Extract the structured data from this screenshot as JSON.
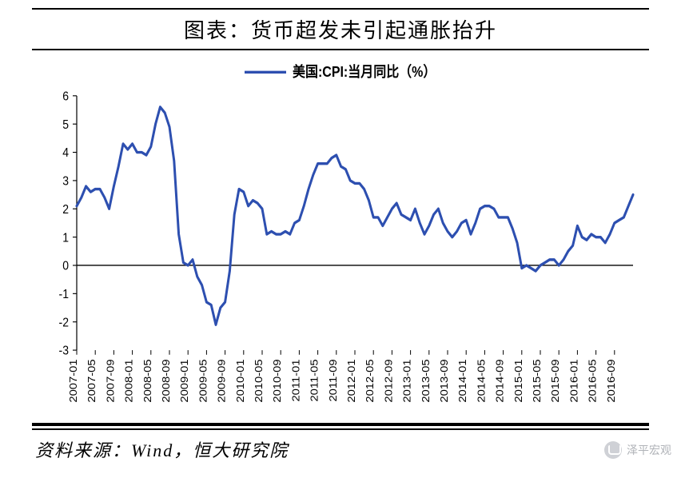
{
  "title": "图表：货币超发未引起通胀抬升",
  "source": "资料来源：Wind，恒大研究院",
  "watermark": "泽平宏观",
  "chart": {
    "type": "line",
    "legend": {
      "label": "美国:CPI:当月同比（%）",
      "color": "#2d4fb0",
      "line_width": 3
    },
    "background_color": "#ffffff",
    "axis_color": "#000000",
    "tick_color": "#000000",
    "y": {
      "min": -3,
      "max": 6,
      "step": 1,
      "ticks": [
        -3,
        -2,
        -1,
        0,
        1,
        2,
        3,
        4,
        5,
        6
      ]
    },
    "x": {
      "labels": [
        "2007-01",
        "2007-05",
        "2007-09",
        "2008-01",
        "2008-05",
        "2008-09",
        "2009-01",
        "2009-05",
        "2009-09",
        "2010-01",
        "2010-05",
        "2010-09",
        "2011-01",
        "2011-05",
        "2011-09",
        "2012-01",
        "2012-05",
        "2012-09",
        "2013-01",
        "2013-05",
        "2013-09",
        "2014-01",
        "2014-05",
        "2014-09",
        "2015-01",
        "2015-05",
        "2015-09",
        "2016-01",
        "2016-05",
        "2016-09"
      ]
    },
    "series": {
      "x": [
        "2007-01",
        "2007-02",
        "2007-03",
        "2007-04",
        "2007-05",
        "2007-06",
        "2007-07",
        "2007-08",
        "2007-09",
        "2007-10",
        "2007-11",
        "2007-12",
        "2008-01",
        "2008-02",
        "2008-03",
        "2008-04",
        "2008-05",
        "2008-06",
        "2008-07",
        "2008-08",
        "2008-09",
        "2008-10",
        "2008-11",
        "2008-12",
        "2009-01",
        "2009-02",
        "2009-03",
        "2009-04",
        "2009-05",
        "2009-06",
        "2009-07",
        "2009-08",
        "2009-09",
        "2009-10",
        "2009-11",
        "2009-12",
        "2010-01",
        "2010-02",
        "2010-03",
        "2010-04",
        "2010-05",
        "2010-06",
        "2010-07",
        "2010-08",
        "2010-09",
        "2010-10",
        "2010-11",
        "2010-12",
        "2011-01",
        "2011-02",
        "2011-03",
        "2011-04",
        "2011-05",
        "2011-06",
        "2011-07",
        "2011-08",
        "2011-09",
        "2011-10",
        "2011-11",
        "2011-12",
        "2012-01",
        "2012-02",
        "2012-03",
        "2012-04",
        "2012-05",
        "2012-06",
        "2012-07",
        "2012-08",
        "2012-09",
        "2012-10",
        "2012-11",
        "2012-12",
        "2013-01",
        "2013-02",
        "2013-03",
        "2013-04",
        "2013-05",
        "2013-06",
        "2013-07",
        "2013-08",
        "2013-09",
        "2013-10",
        "2013-11",
        "2013-12",
        "2014-01",
        "2014-02",
        "2014-03",
        "2014-04",
        "2014-05",
        "2014-06",
        "2014-07",
        "2014-08",
        "2014-09",
        "2014-10",
        "2014-11",
        "2014-12",
        "2015-01",
        "2015-02",
        "2015-03",
        "2015-04",
        "2015-05",
        "2015-06",
        "2015-07",
        "2015-08",
        "2015-09",
        "2015-10",
        "2015-11",
        "2015-12",
        "2016-01",
        "2016-02",
        "2016-03",
        "2016-04",
        "2016-05",
        "2016-06",
        "2016-07",
        "2016-08",
        "2016-09",
        "2016-10",
        "2016-11",
        "2016-12",
        "2017-01"
      ],
      "y": [
        2.1,
        2.4,
        2.8,
        2.6,
        2.7,
        2.7,
        2.4,
        2.0,
        2.8,
        3.5,
        4.3,
        4.1,
        4.3,
        4.0,
        4.0,
        3.9,
        4.2,
        5.0,
        5.6,
        5.4,
        4.9,
        3.7,
        1.1,
        0.1,
        0.0,
        0.2,
        -0.4,
        -0.7,
        -1.3,
        -1.4,
        -2.1,
        -1.5,
        -1.3,
        -0.2,
        1.8,
        2.7,
        2.6,
        2.1,
        2.3,
        2.2,
        2.0,
        1.1,
        1.2,
        1.1,
        1.1,
        1.2,
        1.1,
        1.5,
        1.6,
        2.1,
        2.7,
        3.2,
        3.6,
        3.6,
        3.6,
        3.8,
        3.9,
        3.5,
        3.4,
        3.0,
        2.9,
        2.9,
        2.7,
        2.3,
        1.7,
        1.7,
        1.4,
        1.7,
        2.0,
        2.2,
        1.8,
        1.7,
        1.6,
        2.0,
        1.5,
        1.1,
        1.4,
        1.8,
        2.0,
        1.5,
        1.2,
        1.0,
        1.2,
        1.5,
        1.6,
        1.1,
        1.5,
        2.0,
        2.1,
        2.1,
        2.0,
        1.7,
        1.7,
        1.7,
        1.3,
        0.8,
        -0.1,
        0.0,
        -0.1,
        -0.2,
        0.0,
        0.1,
        0.2,
        0.2,
        0.0,
        0.2,
        0.5,
        0.7,
        1.4,
        1.0,
        0.9,
        1.1,
        1.0,
        1.0,
        0.8,
        1.1,
        1.5,
        1.6,
        1.7,
        2.1,
        2.5
      ]
    }
  }
}
